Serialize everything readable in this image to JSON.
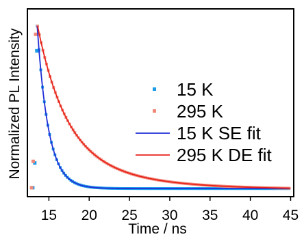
{
  "chart_data": {
    "type": "scatter",
    "xlabel": "Time / ns",
    "ylabel": "Normalized PL Intensity",
    "xlim": [
      12.5,
      45.3
    ],
    "ylim": [
      -0.03,
      1.1
    ],
    "xticks": [
      15,
      20,
      25,
      30,
      35,
      40,
      45
    ],
    "yticks_shown": false,
    "grid": false,
    "legend_position": "right-center",
    "series": [
      {
        "name": "15 K",
        "kind": "data",
        "color": "#1a9be8",
        "model": {
          "t0": 13.55,
          "amplitude": 1.0,
          "tau": 1.4,
          "floor": 0.015
        },
        "pre_pulse_points": [
          [
            13.0,
            0.02
          ],
          [
            13.25,
            0.17
          ],
          [
            13.5,
            0.85
          ],
          [
            13.7,
            0.85
          ]
        ]
      },
      {
        "name": "295 K",
        "kind": "data",
        "color": "#f08878",
        "model": {
          "t0": 13.6,
          "amplitude": 1.0,
          "tau1": 3.4,
          "w1": 0.72,
          "tau2": 8.5,
          "w2": 0.28,
          "floor": 0.01
        },
        "pre_pulse_points": [
          [
            12.85,
            0.02
          ],
          [
            13.05,
            0.18
          ],
          [
            13.35,
            0.95
          ]
        ]
      },
      {
        "name": "15 K SE fit",
        "kind": "fit",
        "color": "#1f2fd6",
        "model": {
          "t0": 13.55,
          "amplitude": 1.0,
          "tau": 1.4,
          "floor": 0.015
        }
      },
      {
        "name": "295 K DE fit",
        "kind": "fit",
        "color": "#e8231b",
        "model": {
          "t0": 13.6,
          "amplitude": 1.0,
          "tau1": 3.4,
          "w1": 0.72,
          "tau2": 8.5,
          "w2": 0.28,
          "floor": 0.01
        }
      }
    ]
  }
}
